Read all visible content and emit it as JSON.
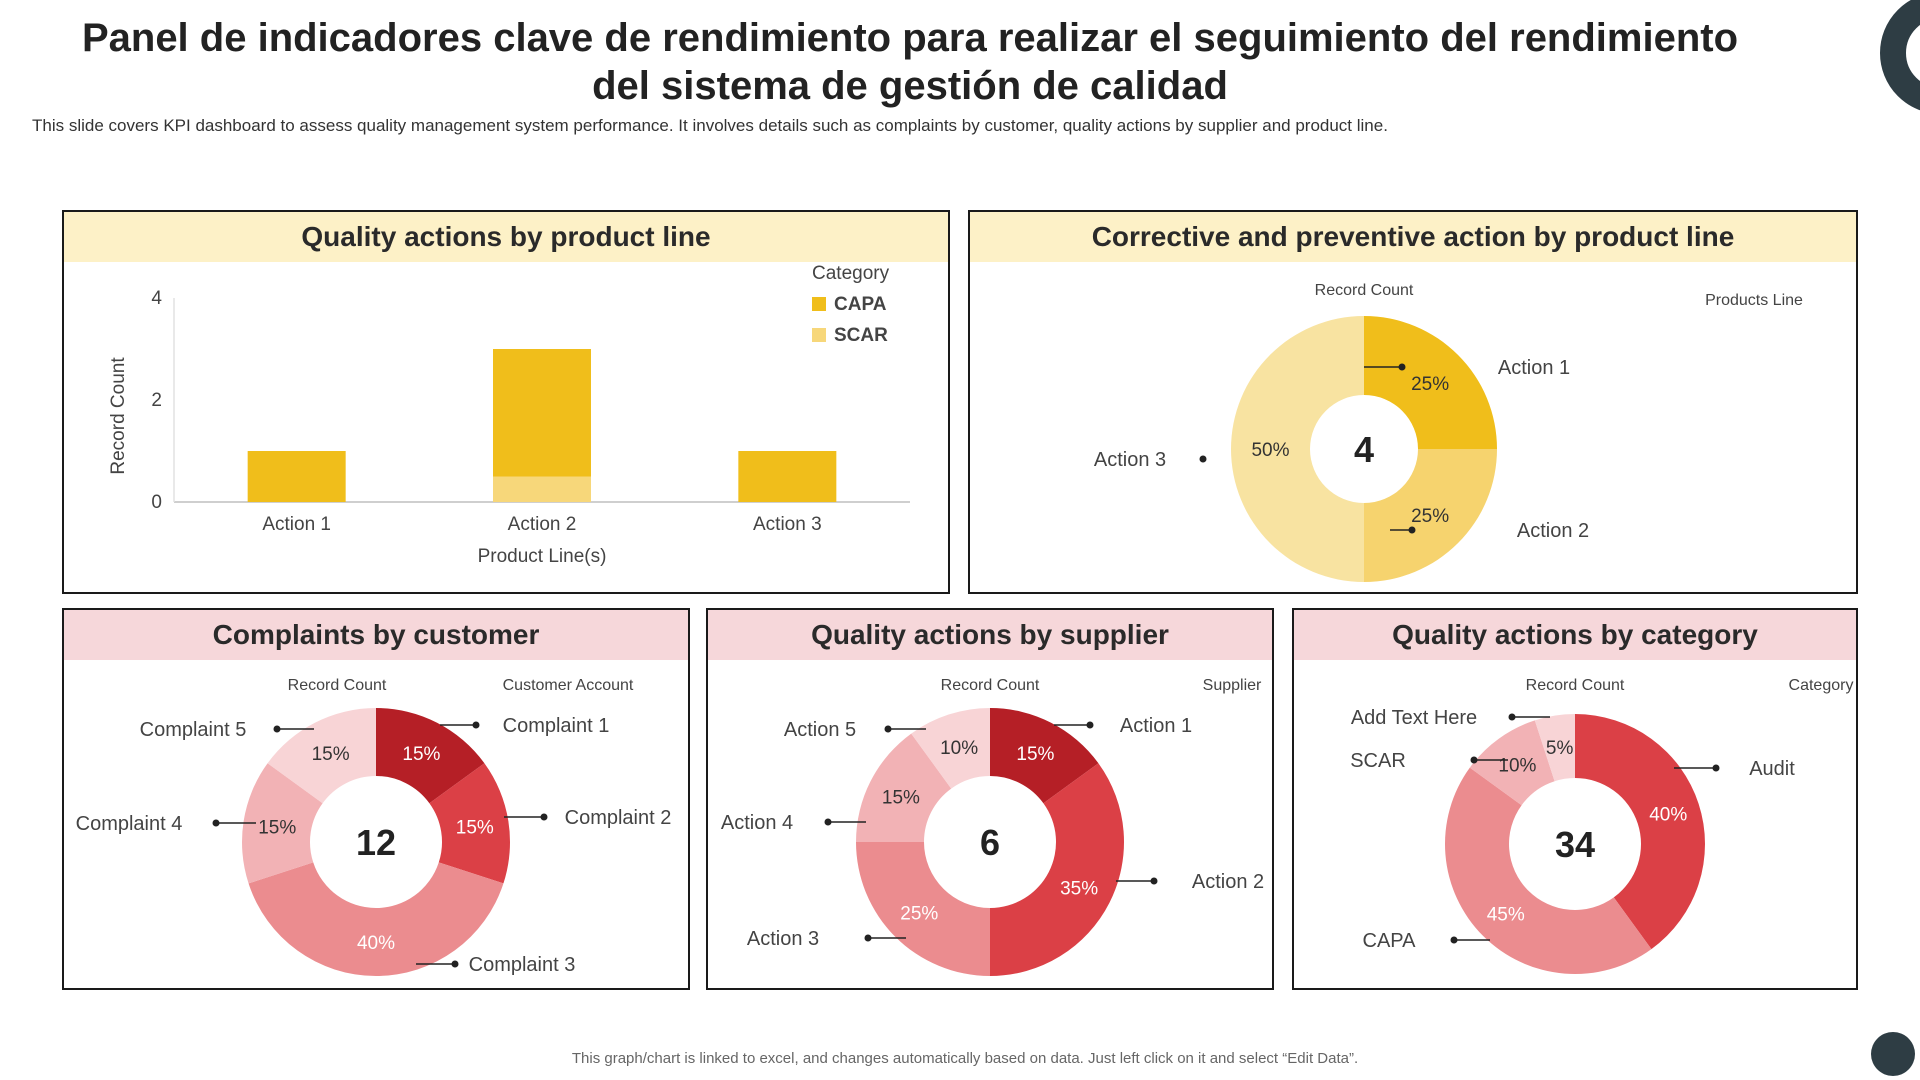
{
  "page": {
    "title": "Panel de indicadores clave de rendimiento para realizar el seguimiento del rendimiento del sistema de gestión de calidad",
    "subtitle": "This slide covers KPI dashboard to assess quality management system performance. It involves details such as complaints by customer, quality actions by supplier and product line.",
    "footer": "This graph/chart is linked to excel, and changes automatically based on data. Just left click on it and select “Edit Data”."
  },
  "colors": {
    "capa": "#f0be1b",
    "scar": "#f7d77a",
    "accent_dark": "#2e3d44"
  },
  "chart_data": [
    {
      "type": "bar",
      "title": "Quality actions by product line",
      "categories": [
        "Action 1",
        "Action 2",
        "Action 3"
      ],
      "series": [
        {
          "name": "CAPA",
          "values": [
            1,
            2.5,
            1
          ],
          "color": "#f0be1b"
        },
        {
          "name": "SCAR",
          "values": [
            0,
            0.5,
            0
          ],
          "color": "#f7d77a"
        }
      ],
      "stacked": true,
      "xlabel": "Product Line(s)",
      "ylabel": "Record Count",
      "ylim": [
        0,
        4
      ],
      "yticks": [
        0,
        2,
        4
      ],
      "legend_title": "Category",
      "legend_position": "top-right"
    },
    {
      "type": "pie",
      "title": "Corrective and preventive action by product line",
      "value_label": "Record Count",
      "legend_title": "Products Line",
      "center_value": "4",
      "slices": [
        {
          "label": "Action 1",
          "value": 25,
          "pct": "25%",
          "color": "#f0be1b"
        },
        {
          "label": "Action 2",
          "value": 25,
          "pct": "25%",
          "color": "#f6d36e"
        },
        {
          "label": "Action 3",
          "value": 50,
          "pct": "50%",
          "color": "#f8e3a1"
        }
      ]
    },
    {
      "type": "pie",
      "title": "Complaints by customer",
      "value_label": "Record Count",
      "legend_title": "Customer Account",
      "center_value": "12",
      "slices": [
        {
          "label": "Complaint 1",
          "value": 15,
          "pct": "15%",
          "color": "#b51f26"
        },
        {
          "label": "Complaint 2",
          "value": 15,
          "pct": "15%",
          "color": "#db4046"
        },
        {
          "label": "Complaint 3",
          "value": 40,
          "pct": "40%",
          "color": "#eb8c8f"
        },
        {
          "label": "Complaint 4",
          "value": 15,
          "pct": "15%",
          "color": "#f2b2b5"
        },
        {
          "label": "Complaint 5",
          "value": 15,
          "pct": "15%",
          "color": "#f8d4d6"
        }
      ]
    },
    {
      "type": "pie",
      "title": "Quality actions by supplier",
      "value_label": "Record Count",
      "legend_title": "Supplier",
      "center_value": "6",
      "slices": [
        {
          "label": "Action 1",
          "value": 15,
          "pct": "15%",
          "color": "#b51f26"
        },
        {
          "label": "Action 2",
          "value": 35,
          "pct": "35%",
          "color": "#db4046"
        },
        {
          "label": "Action 3",
          "value": 25,
          "pct": "25%",
          "color": "#eb8c8f"
        },
        {
          "label": "Action 4",
          "value": 15,
          "pct": "15%",
          "color": "#f2b2b5"
        },
        {
          "label": "Action 5",
          "value": 10,
          "pct": "10%",
          "color": "#f8d4d6"
        }
      ]
    },
    {
      "type": "pie",
      "title": "Quality actions by category",
      "value_label": "Record Count",
      "legend_title": "Category",
      "center_value": "34",
      "slices": [
        {
          "label": "Audit",
          "value": 40,
          "pct": "40%",
          "color": "#db4046"
        },
        {
          "label": "CAPA",
          "value": 45,
          "pct": "45%",
          "color": "#eb8c8f"
        },
        {
          "label": "SCAR",
          "value": 10,
          "pct": "10%",
          "color": "#f2b2b5"
        },
        {
          "label": "Add Text Here",
          "value": 5,
          "pct": "5%",
          "color": "#f8d4d6"
        }
      ]
    }
  ]
}
